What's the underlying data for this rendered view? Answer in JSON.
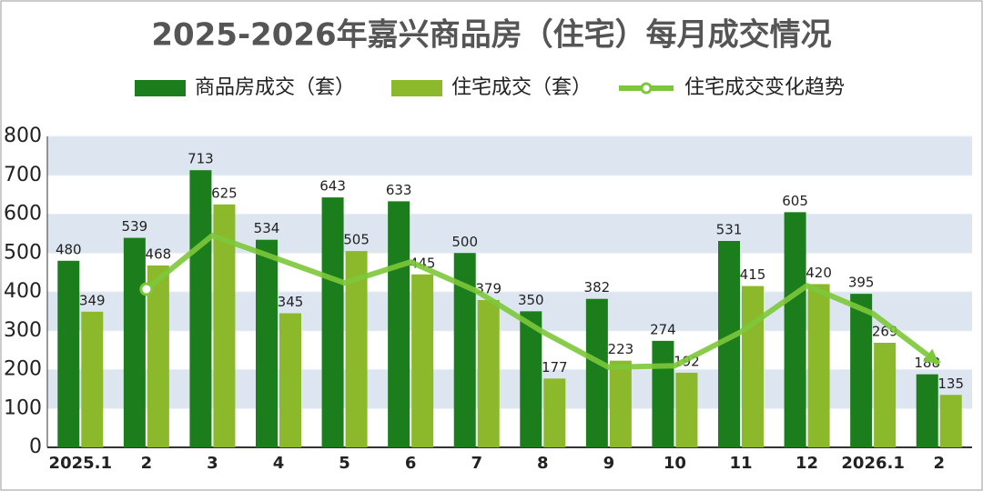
{
  "chart_data": {
    "type": "bar",
    "title": "2025-2026年嘉兴商品房（住宅）每月成交情况",
    "categories": [
      "2025.1",
      "2",
      "3",
      "4",
      "5",
      "6",
      "7",
      "8",
      "9",
      "10",
      "11",
      "12",
      "2026.1",
      "2"
    ],
    "series": [
      {
        "name": "商品房成交（套）",
        "color": "#1b7d1b",
        "values": [
          480,
          539,
          713,
          534,
          643,
          633,
          500,
          350,
          382,
          274,
          531,
          605,
          395,
          188
        ]
      },
      {
        "name": "住宅成交（套）",
        "color": "#8cb82b",
        "values": [
          349,
          468,
          625,
          345,
          505,
          445,
          379,
          177,
          223,
          192,
          415,
          420,
          269,
          135
        ]
      },
      {
        "name": "住宅成交变化趋势",
        "color": "#7dc83a",
        "type": "line",
        "values": [
          null,
          407,
          545,
          484,
          423,
          477,
          402,
          297,
          206,
          210,
          297,
          416,
          344,
          215
        ]
      }
    ],
    "ylim": [
      0,
      800
    ],
    "yticks": [
      0,
      100,
      200,
      300,
      400,
      500,
      600,
      700,
      800
    ],
    "grid": true
  }
}
